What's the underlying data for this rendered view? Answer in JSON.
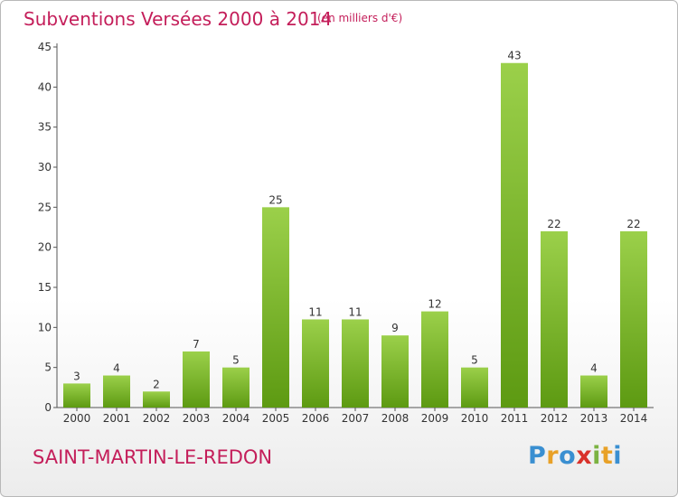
{
  "header": {
    "title": "Subventions Versées 2000 à 2014",
    "subtitle": "(en milliers d'€)"
  },
  "footer": {
    "commune": "SAINT-MARTIN-LE-REDON",
    "logo_letters": [
      "P",
      "r",
      "o",
      "x",
      "i",
      "t",
      "i"
    ],
    "logo_colors": [
      "#3a8fd1",
      "#e8a128",
      "#3a8fd1",
      "#d9322b",
      "#7cb342",
      "#e8a128",
      "#3a8fd1"
    ]
  },
  "colors": {
    "title": "#c41e5a",
    "bar_light": "#9bd04a",
    "bar_dark": "#5d9a12",
    "axis": "#555555"
  },
  "chart_data": {
    "type": "bar",
    "categories": [
      "2000",
      "2001",
      "2002",
      "2003",
      "2004",
      "2005",
      "2006",
      "2007",
      "2008",
      "2009",
      "2010",
      "2011",
      "2012",
      "2013",
      "2014"
    ],
    "values": [
      3,
      4,
      2,
      7,
      5,
      25,
      11,
      11,
      9,
      12,
      5,
      43,
      22,
      4,
      22
    ],
    "yticks": [
      0,
      5,
      10,
      15,
      20,
      25,
      30,
      35,
      40,
      45
    ],
    "ylim": [
      0,
      45
    ],
    "grid": false
  }
}
